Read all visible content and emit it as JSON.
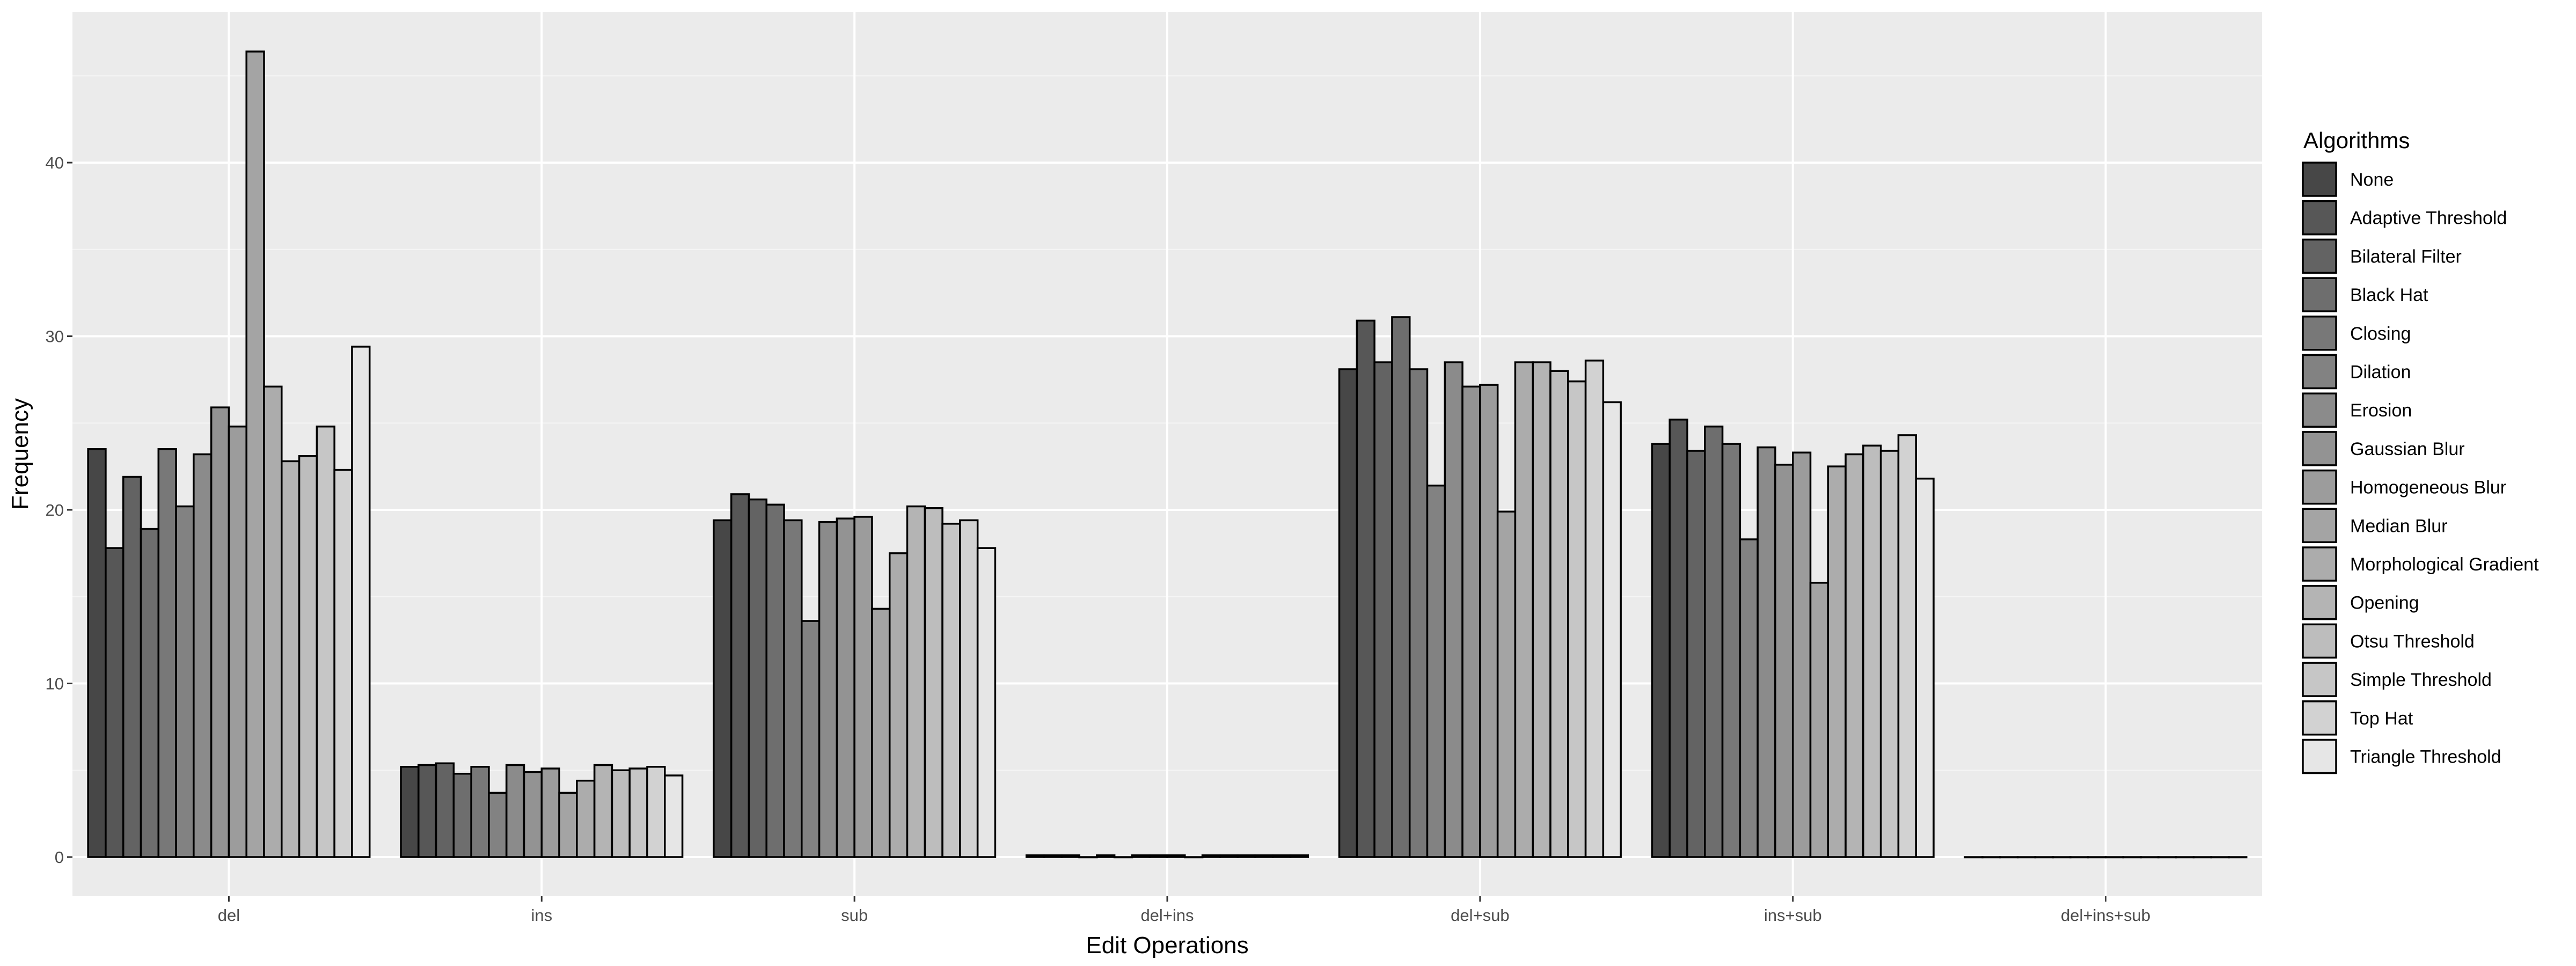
{
  "chart_data": {
    "type": "bar",
    "xlabel": "Edit Operations",
    "ylabel": "Frequency",
    "ylim": [
      0,
      46.4
    ],
    "yticks": [
      "0",
      "10",
      "20",
      "30",
      "40"
    ],
    "categories": [
      "del",
      "ins",
      "sub",
      "del+ins",
      "del+sub",
      "ins+sub",
      "del+ins+sub"
    ],
    "legend_title": "Algorithms",
    "legend_position": "right",
    "grid": true,
    "series": [
      {
        "name": "None",
        "color": "#474747",
        "values": [
          23.5,
          5.2,
          19.4,
          0.1,
          28.1,
          23.8,
          0.0
        ]
      },
      {
        "name": "Adaptive Threshold",
        "color": "#575757",
        "values": [
          17.8,
          5.3,
          20.9,
          0.1,
          30.9,
          25.2,
          0.0
        ]
      },
      {
        "name": "Bilateral Filter",
        "color": "#636363",
        "values": [
          21.9,
          5.4,
          20.6,
          0.1,
          28.5,
          23.4,
          0.0
        ]
      },
      {
        "name": "Black Hat",
        "color": "#6e6e6e",
        "values": [
          18.9,
          4.8,
          20.3,
          0.0,
          31.1,
          24.8,
          0.0
        ]
      },
      {
        "name": "Closing",
        "color": "#787878",
        "values": [
          23.5,
          5.2,
          19.4,
          0.1,
          28.1,
          23.8,
          0.0
        ]
      },
      {
        "name": "Dilation",
        "color": "#828282",
        "values": [
          20.2,
          3.7,
          13.6,
          0.0,
          21.4,
          18.3,
          0.0
        ]
      },
      {
        "name": "Erosion",
        "color": "#8b8b8b",
        "values": [
          23.2,
          5.3,
          19.3,
          0.1,
          28.5,
          23.6,
          0.0
        ]
      },
      {
        "name": "Gaussian Blur",
        "color": "#939393",
        "values": [
          25.9,
          4.9,
          19.5,
          0.1,
          27.1,
          22.6,
          0.0
        ]
      },
      {
        "name": "Homogeneous Blur",
        "color": "#9c9c9c",
        "values": [
          24.8,
          5.1,
          19.6,
          0.1,
          27.2,
          23.3,
          0.0
        ]
      },
      {
        "name": "Median Blur",
        "color": "#a4a4a4",
        "values": [
          46.4,
          3.7,
          14.3,
          0.0,
          19.9,
          15.8,
          0.0
        ]
      },
      {
        "name": "Morphological Gradient",
        "color": "#acacac",
        "values": [
          27.1,
          4.4,
          17.5,
          0.1,
          28.5,
          22.5,
          0.0
        ]
      },
      {
        "name": "Opening",
        "color": "#b4b4b4",
        "values": [
          22.8,
          5.3,
          20.2,
          0.1,
          28.5,
          23.2,
          0.0
        ]
      },
      {
        "name": "Otsu Threshold",
        "color": "#bdbdbd",
        "values": [
          23.1,
          5.0,
          20.1,
          0.1,
          28.0,
          23.7,
          0.0
        ]
      },
      {
        "name": "Simple Threshold",
        "color": "#c6c6c6",
        "values": [
          24.8,
          5.1,
          19.2,
          0.1,
          27.4,
          23.4,
          0.0
        ]
      },
      {
        "name": "Top Hat",
        "color": "#d2d2d2",
        "values": [
          22.3,
          5.2,
          19.4,
          0.1,
          28.6,
          24.3,
          0.0
        ]
      },
      {
        "name": "Triangle Threshold",
        "color": "#e6e6e6",
        "values": [
          29.4,
          4.7,
          17.8,
          0.1,
          26.2,
          21.8,
          0.0
        ]
      }
    ]
  }
}
